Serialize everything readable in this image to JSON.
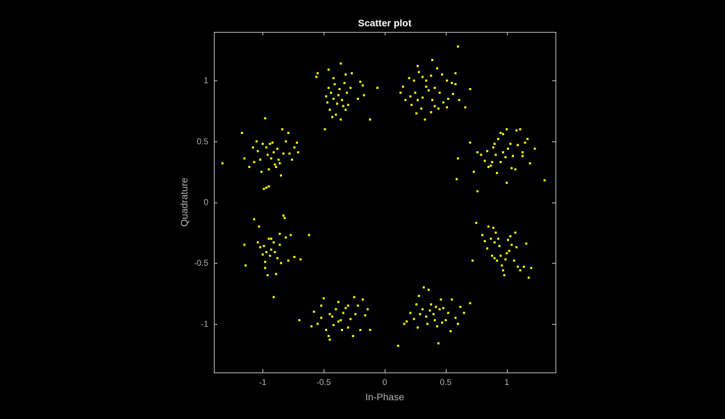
{
  "figure": {
    "background_color": "#000000"
  },
  "chart_data": {
    "type": "scatter",
    "title": "Scatter plot",
    "xlabel": "In-Phase",
    "ylabel": "Quadrature",
    "xlim": [
      -1.4,
      1.4
    ],
    "ylim": [
      -1.4,
      1.4
    ],
    "xticks": [
      -1,
      -0.5,
      0,
      0.5,
      1
    ],
    "yticks": [
      -1,
      -0.5,
      0,
      0.5,
      1
    ],
    "xtick_labels": [
      "-1",
      "-0.5",
      "0",
      "0.5",
      "1"
    ],
    "ytick_labels": [
      "-1",
      "-0.5",
      "0",
      "0.5",
      "1"
    ],
    "grid": false,
    "legend": "none",
    "axes_color": "#000000",
    "axis_line_color": "#cccccc",
    "label_color": "#b4b4b4",
    "title_color": "#ffffff",
    "marker_color": "#ffff00",
    "points": [
      [
        -0.55,
        1.06
      ],
      [
        -0.56,
        1.03
      ],
      [
        -0.46,
        1.09
      ],
      [
        -0.42,
        1.02
      ],
      [
        -0.36,
        1.14
      ],
      [
        -0.32,
        1.05
      ],
      [
        -0.41,
        0.97
      ],
      [
        -0.37,
        0.93
      ],
      [
        -0.33,
        0.98
      ],
      [
        -0.44,
        0.9
      ],
      [
        -0.48,
        0.87
      ],
      [
        -0.47,
        0.82
      ],
      [
        -0.42,
        0.85
      ],
      [
        -0.38,
        0.88
      ],
      [
        -0.35,
        0.84
      ],
      [
        -0.31,
        0.9
      ],
      [
        -0.28,
        0.94
      ],
      [
        -0.45,
        0.76
      ],
      [
        -0.4,
        0.72
      ],
      [
        -0.36,
        0.68
      ],
      [
        -0.32,
        0.76
      ],
      [
        -0.3,
        0.8
      ],
      [
        -0.49,
        0.6
      ],
      [
        -0.43,
        0.7
      ],
      [
        -0.27,
        1.06
      ],
      [
        -0.2,
        0.99
      ],
      [
        -0.18,
        0.96
      ],
      [
        -0.17,
        0.88
      ],
      [
        -0.22,
        0.85
      ],
      [
        -0.12,
        0.68
      ],
      [
        -0.06,
        0.94
      ],
      [
        -0.34,
        0.79
      ],
      [
        -0.39,
        0.81
      ],
      [
        -0.46,
        0.94
      ],
      [
        0.13,
        0.9
      ],
      [
        0.15,
        0.95
      ],
      [
        0.2,
        1.02
      ],
      [
        0.24,
        1.0
      ],
      [
        0.27,
        1.12
      ],
      [
        0.28,
        1.07
      ],
      [
        0.31,
        1.03
      ],
      [
        0.34,
        1.0
      ],
      [
        0.38,
        1.04
      ],
      [
        0.39,
        1.17
      ],
      [
        0.43,
        1.1
      ],
      [
        0.47,
        1.05
      ],
      [
        0.51,
        1.0
      ],
      [
        0.55,
        0.98
      ],
      [
        0.58,
        0.97
      ],
      [
        0.58,
        1.06
      ],
      [
        0.6,
        1.28
      ],
      [
        0.34,
        0.95
      ],
      [
        0.36,
        0.92
      ],
      [
        0.41,
        0.94
      ],
      [
        0.45,
        0.9
      ],
      [
        0.25,
        0.9
      ],
      [
        0.21,
        0.87
      ],
      [
        0.27,
        0.84
      ],
      [
        0.31,
        0.86
      ],
      [
        0.39,
        0.84
      ],
      [
        0.48,
        0.82
      ],
      [
        0.52,
        0.85
      ],
      [
        0.56,
        0.89
      ],
      [
        0.61,
        0.84
      ],
      [
        0.22,
        0.8
      ],
      [
        0.3,
        0.77
      ],
      [
        0.38,
        0.74
      ],
      [
        0.44,
        0.77
      ],
      [
        0.33,
        0.68
      ],
      [
        0.26,
        0.73
      ],
      [
        0.41,
        0.79
      ],
      [
        0.51,
        0.78
      ],
      [
        0.66,
        0.78
      ],
      [
        0.7,
        0.93
      ],
      [
        0.17,
        0.84
      ],
      [
        -1.33,
        0.32
      ],
      [
        -1.17,
        0.57
      ],
      [
        -1.15,
        0.36
      ],
      [
        -1.11,
        0.29
      ],
      [
        -1.08,
        0.45
      ],
      [
        -1.05,
        0.5
      ],
      [
        -1.04,
        0.42
      ],
      [
        -1.02,
        0.35
      ],
      [
        -1.01,
        0.25
      ],
      [
        -0.98,
        0.69
      ],
      [
        -0.97,
        0.45
      ],
      [
        -0.96,
        0.39
      ],
      [
        -0.94,
        0.48
      ],
      [
        -0.93,
        0.36
      ],
      [
        -0.91,
        0.41
      ],
      [
        -0.9,
        0.31
      ],
      [
        -0.88,
        0.44
      ],
      [
        -0.86,
        0.32
      ],
      [
        -0.85,
        0.22
      ],
      [
        -0.83,
        0.4
      ],
      [
        -0.81,
        0.5
      ],
      [
        -0.79,
        0.57
      ],
      [
        -0.78,
        0.4
      ],
      [
        -0.76,
        0.35
      ],
      [
        -0.74,
        0.45
      ],
      [
        -0.72,
        0.49
      ],
      [
        -0.71,
        0.41
      ],
      [
        -0.89,
        0.29
      ],
      [
        -0.92,
        0.49
      ],
      [
        -0.95,
        0.27
      ],
      [
        -1.0,
        0.48
      ],
      [
        -0.97,
        0.12
      ],
      [
        -0.95,
        0.13
      ],
      [
        -0.99,
        0.11
      ],
      [
        -1.07,
        0.33
      ],
      [
        -0.87,
        0.35
      ],
      [
        -0.84,
        0.6
      ],
      [
        0.7,
        0.49
      ],
      [
        0.76,
        0.41
      ],
      [
        0.79,
        0.39
      ],
      [
        0.82,
        0.34
      ],
      [
        0.85,
        0.29
      ],
      [
        0.88,
        0.33
      ],
      [
        0.89,
        0.45
      ],
      [
        0.91,
        0.39
      ],
      [
        0.93,
        0.52
      ],
      [
        0.95,
        0.57
      ],
      [
        0.97,
        0.41
      ],
      [
        0.99,
        0.37
      ],
      [
        1.01,
        0.44
      ],
      [
        1.03,
        0.48
      ],
      [
        1.05,
        0.38
      ],
      [
        1.07,
        0.27
      ],
      [
        1.09,
        0.47
      ],
      [
        1.11,
        0.6
      ],
      [
        1.13,
        0.41
      ],
      [
        1.15,
        0.49
      ],
      [
        1.17,
        0.52
      ],
      [
        1.19,
        0.32
      ],
      [
        1.23,
        0.44
      ],
      [
        1.31,
        0.18
      ],
      [
        0.59,
        0.19
      ],
      [
        0.6,
        0.36
      ],
      [
        0.73,
        0.25
      ],
      [
        0.76,
        0.09
      ],
      [
        0.87,
        0.3
      ],
      [
        0.92,
        0.24
      ],
      [
        1.0,
        0.6
      ],
      [
        1.04,
        0.28
      ],
      [
        1.0,
        0.16
      ],
      [
        0.97,
        0.56
      ],
      [
        0.9,
        0.48
      ],
      [
        0.84,
        0.42
      ],
      [
        1.13,
        0.38
      ],
      [
        0.95,
        0.33
      ],
      [
        1.08,
        0.59
      ],
      [
        -1.15,
        -0.35
      ],
      [
        -1.14,
        -0.52
      ],
      [
        -1.07,
        -0.14
      ],
      [
        -1.04,
        -0.33
      ],
      [
        -1.02,
        -0.37
      ],
      [
        -1.0,
        -0.43
      ],
      [
        -0.98,
        -0.49
      ],
      [
        -0.98,
        -0.54
      ],
      [
        -0.96,
        -0.6
      ],
      [
        -0.95,
        -0.3
      ],
      [
        -0.93,
        -0.39
      ],
      [
        -0.91,
        -0.33
      ],
      [
        -0.9,
        -0.41
      ],
      [
        -0.88,
        -0.46
      ],
      [
        -0.86,
        -0.26
      ],
      [
        -0.85,
        -0.5
      ],
      [
        -0.83,
        -0.11
      ],
      [
        -0.82,
        -0.13
      ],
      [
        -0.81,
        -0.29
      ],
      [
        -0.79,
        -0.48
      ],
      [
        -0.77,
        -0.27
      ],
      [
        -0.74,
        -0.45
      ],
      [
        -0.62,
        -0.27
      ],
      [
        -0.69,
        -0.47
      ],
      [
        -0.89,
        -0.59
      ],
      [
        -0.94,
        -0.44
      ],
      [
        -0.99,
        -0.36
      ],
      [
        -0.93,
        -0.3
      ],
      [
        -0.91,
        -0.78
      ],
      [
        -1.03,
        -0.2
      ],
      [
        -0.97,
        -0.41
      ],
      [
        -0.86,
        -0.35
      ],
      [
        0.75,
        -0.17
      ],
      [
        0.72,
        -0.48
      ],
      [
        0.8,
        -0.27
      ],
      [
        0.82,
        -0.32
      ],
      [
        0.84,
        -0.38
      ],
      [
        0.85,
        -0.2
      ],
      [
        0.87,
        -0.3
      ],
      [
        0.88,
        -0.44
      ],
      [
        0.9,
        -0.33
      ],
      [
        0.9,
        -0.46
      ],
      [
        0.91,
        -0.25
      ],
      [
        0.93,
        -0.3
      ],
      [
        0.94,
        -0.36
      ],
      [
        0.95,
        -0.44
      ],
      [
        0.96,
        -0.52
      ],
      [
        0.97,
        -0.56
      ],
      [
        0.98,
        -0.6
      ],
      [
        1.0,
        -0.42
      ],
      [
        1.01,
        -0.31
      ],
      [
        1.02,
        -0.4
      ],
      [
        1.04,
        -0.35
      ],
      [
        1.06,
        -0.48
      ],
      [
        1.07,
        -0.25
      ],
      [
        1.08,
        -0.37
      ],
      [
        1.09,
        -0.53
      ],
      [
        1.11,
        -0.56
      ],
      [
        1.14,
        -0.53
      ],
      [
        1.16,
        -0.34
      ],
      [
        1.18,
        -0.62
      ],
      [
        1.2,
        -0.54
      ],
      [
        0.99,
        -0.47
      ],
      [
        0.92,
        -0.48
      ],
      [
        1.03,
        -0.28
      ],
      [
        0.89,
        -0.21
      ],
      [
        -0.7,
        -0.97
      ],
      [
        -0.6,
        -1.02
      ],
      [
        -0.58,
        -0.9
      ],
      [
        -0.55,
        -1.0
      ],
      [
        -0.52,
        -0.85
      ],
      [
        -0.5,
        -0.79
      ],
      [
        -0.48,
        -1.05
      ],
      [
        -0.46,
        -1.1
      ],
      [
        -0.45,
        -1.13
      ],
      [
        -0.43,
        -0.94
      ],
      [
        -0.42,
        -1.01
      ],
      [
        -0.4,
        -0.88
      ],
      [
        -0.38,
        -0.82
      ],
      [
        -0.36,
        -0.97
      ],
      [
        -0.34,
        -0.91
      ],
      [
        -0.32,
        -0.87
      ],
      [
        -0.3,
        -1.03
      ],
      [
        -0.28,
        -0.96
      ],
      [
        -0.26,
        -1.1
      ],
      [
        -0.24,
        -0.92
      ],
      [
        -0.22,
        -0.85
      ],
      [
        -0.2,
        -1.05
      ],
      [
        -0.18,
        -0.8
      ],
      [
        -0.16,
        -0.93
      ],
      [
        -0.14,
        -0.88
      ],
      [
        -0.12,
        -1.05
      ],
      [
        -0.25,
        -0.78
      ],
      [
        -0.3,
        -0.85
      ],
      [
        -0.38,
        -0.98
      ],
      [
        -0.35,
        -1.05
      ],
      [
        -0.45,
        -0.92
      ],
      [
        -0.52,
        -0.95
      ],
      [
        0.11,
        -1.18
      ],
      [
        0.16,
        -1.0
      ],
      [
        0.18,
        -0.98
      ],
      [
        0.21,
        -0.91
      ],
      [
        0.24,
        -0.96
      ],
      [
        0.26,
        -0.84
      ],
      [
        0.27,
        -1.03
      ],
      [
        0.28,
        -0.77
      ],
      [
        0.31,
        -0.88
      ],
      [
        0.32,
        -0.7
      ],
      [
        0.34,
        -0.94
      ],
      [
        0.35,
        -1.0
      ],
      [
        0.37,
        -0.89
      ],
      [
        0.38,
        -0.84
      ],
      [
        0.4,
        -0.92
      ],
      [
        0.41,
        -0.97
      ],
      [
        0.43,
        -1.02
      ],
      [
        0.44,
        -1.16
      ],
      [
        0.45,
        -0.88
      ],
      [
        0.46,
        -0.8
      ],
      [
        0.48,
        -0.87
      ],
      [
        0.5,
        -0.97
      ],
      [
        0.52,
        -0.91
      ],
      [
        0.54,
        -1.06
      ],
      [
        0.55,
        -0.8
      ],
      [
        0.58,
        -0.95
      ],
      [
        0.6,
        -1.0
      ],
      [
        0.62,
        -0.86
      ],
      [
        0.65,
        -0.91
      ],
      [
        0.7,
        -0.83
      ],
      [
        0.36,
        -0.72
      ],
      [
        0.29,
        -0.92
      ],
      [
        0.42,
        -0.86
      ],
      [
        0.47,
        -0.99
      ]
    ]
  }
}
